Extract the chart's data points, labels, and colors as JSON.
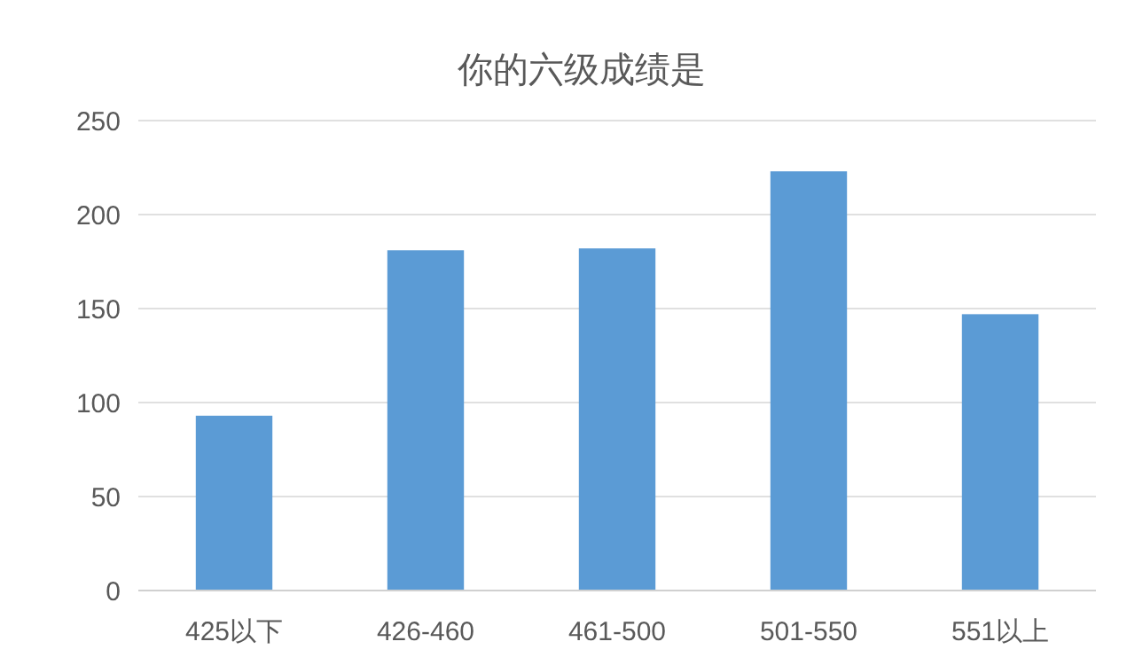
{
  "chart_data": {
    "type": "bar",
    "title": "你的六级成绩是",
    "categories": [
      "425以下",
      "426-460",
      "461-500",
      "501-550",
      "551以上"
    ],
    "values": [
      93,
      181,
      182,
      223,
      147
    ],
    "color": "#5b9bd5",
    "ylim": [
      0,
      250
    ],
    "yticks": [
      0,
      50,
      100,
      150,
      200,
      250
    ],
    "grid": "y"
  }
}
